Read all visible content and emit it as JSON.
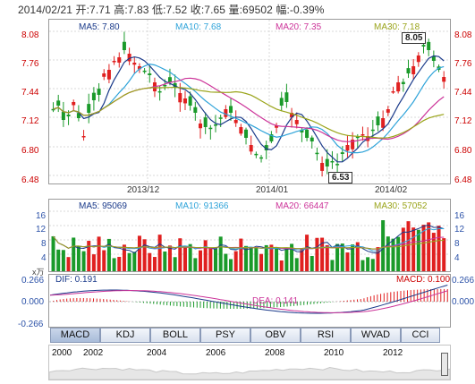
{
  "header": {
    "date": "2014/02/21",
    "open_label": "开:",
    "open": "7.71",
    "high_label": "高:",
    "high": "7.83",
    "low_label": "低:",
    "low": "7.52",
    "close_label": "收:",
    "close": "7.65",
    "volume_label": "量:",
    "volume": "69502",
    "change_label": "幅:",
    "change": "-0.39%"
  },
  "price_panel": {
    "ma_labels": [
      {
        "text": "MA5: 7.80",
        "color": "#1a3a8a"
      },
      {
        "text": "MA10: 7.68",
        "color": "#2ea3d9"
      },
      {
        "text": "MA20: 7.35",
        "color": "#cc3399"
      },
      {
        "text": "MA30: 7.18",
        "color": "#9aa41a"
      }
    ],
    "y_ticks": [
      "8.08",
      "7.76",
      "7.44",
      "7.12",
      "6.80",
      "6.48"
    ],
    "x_ticks": [
      "2013/12",
      "2014/01",
      "2014/02"
    ],
    "callout_high": "8.05",
    "callout_low": "6.53"
  },
  "volume_panel": {
    "ma_labels": [
      {
        "text": "MA5: 95069",
        "color": "#1a3a8a"
      },
      {
        "text": "MA10: 91366",
        "color": "#2ea3d9"
      },
      {
        "text": "MA20: 66447",
        "color": "#cc3399"
      },
      {
        "text": "MA30: 57052",
        "color": "#9aa41a"
      }
    ],
    "y_ticks": [
      "16",
      "12",
      "8",
      "4"
    ],
    "unit": "x万"
  },
  "macd_panel": {
    "dif": "DIF: 0.191",
    "dea": "DEA: 0.141",
    "macd": "MACD: 0.100",
    "y_ticks": [
      "0.266",
      "0.000",
      "-0.266"
    ]
  },
  "tabs": [
    "MACD",
    "KDJ",
    "BOLL",
    "PSY",
    "OBV",
    "RSI",
    "WVAD",
    "CCI"
  ],
  "active_tab": "MACD",
  "timeline_years": [
    "2000",
    "2002",
    "2004",
    "2006",
    "2008",
    "2010",
    "2012"
  ],
  "colors": {
    "up": "#e02020",
    "down": "#1a9a2a",
    "grid": "#cfcfcf"
  }
}
